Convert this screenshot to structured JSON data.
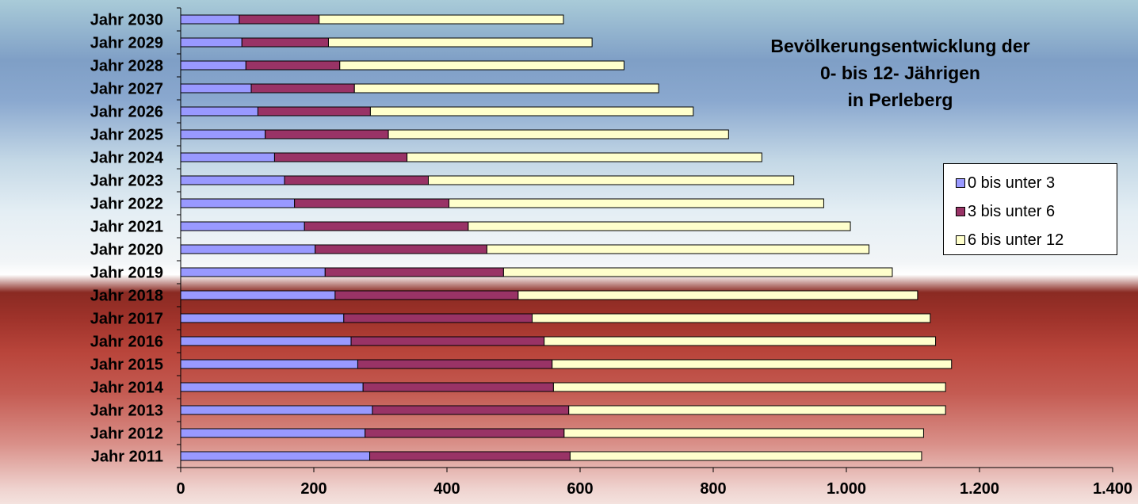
{
  "chart_data": {
    "type": "bar",
    "orientation": "horizontal",
    "stacked": true,
    "title_lines": [
      "Bevölkerungsentwicklung der",
      "0- bis 12- Jährigen",
      "in Perleberg"
    ],
    "categories": [
      "Jahr 2011",
      "Jahr 2012",
      "Jahr 2013",
      "Jahr 2014",
      "Jahr 2015",
      "Jahr 2016",
      "Jahr 2017",
      "Jahr 2018",
      "Jahr 2019",
      "Jahr 2020",
      "Jahr 2021",
      "Jahr 2022",
      "Jahr 2023",
      "Jahr 2024",
      "Jahr 2025",
      "Jahr 2026",
      "Jahr 2027",
      "Jahr 2028",
      "Jahr 2029",
      "Jahr 2030"
    ],
    "series": [
      {
        "name": "0 bis unter 3",
        "color": "#9999ff",
        "values": [
          284,
          277,
          288,
          274,
          266,
          256,
          245,
          232,
          217,
          202,
          186,
          171,
          156,
          141,
          127,
          116,
          106,
          98,
          92,
          88
        ]
      },
      {
        "name": "3 bis unter 6",
        "color": "#993366",
        "values": [
          301,
          299,
          295,
          286,
          292,
          290,
          283,
          275,
          268,
          258,
          246,
          232,
          216,
          199,
          185,
          169,
          155,
          141,
          130,
          120
        ]
      },
      {
        "name": "6 bis unter 12",
        "color": "#ffffcc",
        "values": [
          528,
          540,
          566,
          589,
          600,
          588,
          598,
          600,
          584,
          574,
          574,
          563,
          549,
          533,
          511,
          485,
          457,
          427,
          396,
          367
        ]
      }
    ],
    "xlim": [
      0,
      1400
    ],
    "x_ticks": [
      0,
      200,
      400,
      600,
      800,
      1000,
      1200,
      1400
    ],
    "x_tick_labels": [
      "0",
      "200",
      "400",
      "600",
      "800",
      "1.000",
      "1.200",
      "1.400"
    ],
    "legend_position": "right"
  }
}
